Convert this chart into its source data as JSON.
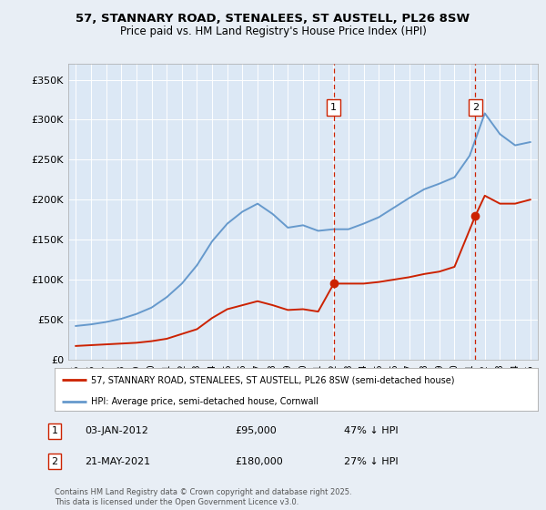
{
  "title_line1": "57, STANNARY ROAD, STENALEES, ST AUSTELL, PL26 8SW",
  "title_line2": "Price paid vs. HM Land Registry's House Price Index (HPI)",
  "background_color": "#e8eef5",
  "plot_bg_color": "#dce8f5",
  "legend_line1": "57, STANNARY ROAD, STENALEES, ST AUSTELL, PL26 8SW (semi-detached house)",
  "legend_line2": "HPI: Average price, semi-detached house, Cornwall",
  "annotation1_date": "03-JAN-2012",
  "annotation1_price": "£95,000",
  "annotation1_hpi": "47% ↓ HPI",
  "annotation2_date": "21-MAY-2021",
  "annotation2_price": "£180,000",
  "annotation2_hpi": "27% ↓ HPI",
  "footer": "Contains HM Land Registry data © Crown copyright and database right 2025.\nThis data is licensed under the Open Government Licence v3.0.",
  "yticks": [
    0,
    50000,
    100000,
    150000,
    200000,
    250000,
    300000,
    350000
  ],
  "ytick_labels": [
    "£0",
    "£50K",
    "£100K",
    "£150K",
    "£200K",
    "£250K",
    "£300K",
    "£350K"
  ],
  "hpi_color": "#6699cc",
  "price_color": "#cc2200",
  "vline_color": "#cc2200",
  "purchase1_x": 2012.03,
  "purchase1_y": 95000,
  "purchase2_x": 2021.38,
  "purchase2_y": 180000,
  "hpi_years": [
    1995,
    1996,
    1997,
    1998,
    1999,
    2000,
    2001,
    2002,
    2003,
    2004,
    2005,
    2006,
    2007,
    2008,
    2009,
    2010,
    2011,
    2012,
    2013,
    2014,
    2015,
    2016,
    2017,
    2018,
    2019,
    2020,
    2021,
    2022,
    2023,
    2024,
    2025
  ],
  "hpi_values": [
    42000,
    44000,
    47000,
    51000,
    57000,
    65000,
    78000,
    95000,
    118000,
    148000,
    170000,
    185000,
    195000,
    182000,
    165000,
    168000,
    161000,
    163000,
    163000,
    170000,
    178000,
    190000,
    202000,
    213000,
    220000,
    228000,
    255000,
    308000,
    282000,
    268000,
    272000
  ],
  "price_years": [
    1995,
    1996,
    1997,
    1998,
    1999,
    2000,
    2001,
    2002,
    2003,
    2004,
    2005,
    2006,
    2007,
    2008,
    2009,
    2010,
    2011,
    2012.03,
    2013,
    2014,
    2015,
    2016,
    2017,
    2018,
    2019,
    2020,
    2021.38,
    2022,
    2023,
    2024,
    2025
  ],
  "price_values": [
    17000,
    18000,
    19000,
    20000,
    21000,
    23000,
    26000,
    32000,
    38000,
    52000,
    63000,
    68000,
    73000,
    68000,
    62000,
    63000,
    60000,
    95000,
    95000,
    95000,
    97000,
    100000,
    103000,
    107000,
    110000,
    116000,
    180000,
    205000,
    195000,
    195000,
    200000
  ],
  "xlim": [
    1994.5,
    2025.5
  ],
  "ylim": [
    0,
    370000
  ],
  "xtick_years": [
    1995,
    1996,
    1997,
    1998,
    1999,
    2000,
    2001,
    2002,
    2003,
    2004,
    2005,
    2006,
    2007,
    2008,
    2009,
    2010,
    2011,
    2012,
    2013,
    2014,
    2015,
    2016,
    2017,
    2018,
    2019,
    2020,
    2021,
    2022,
    2023,
    2024,
    2025
  ]
}
